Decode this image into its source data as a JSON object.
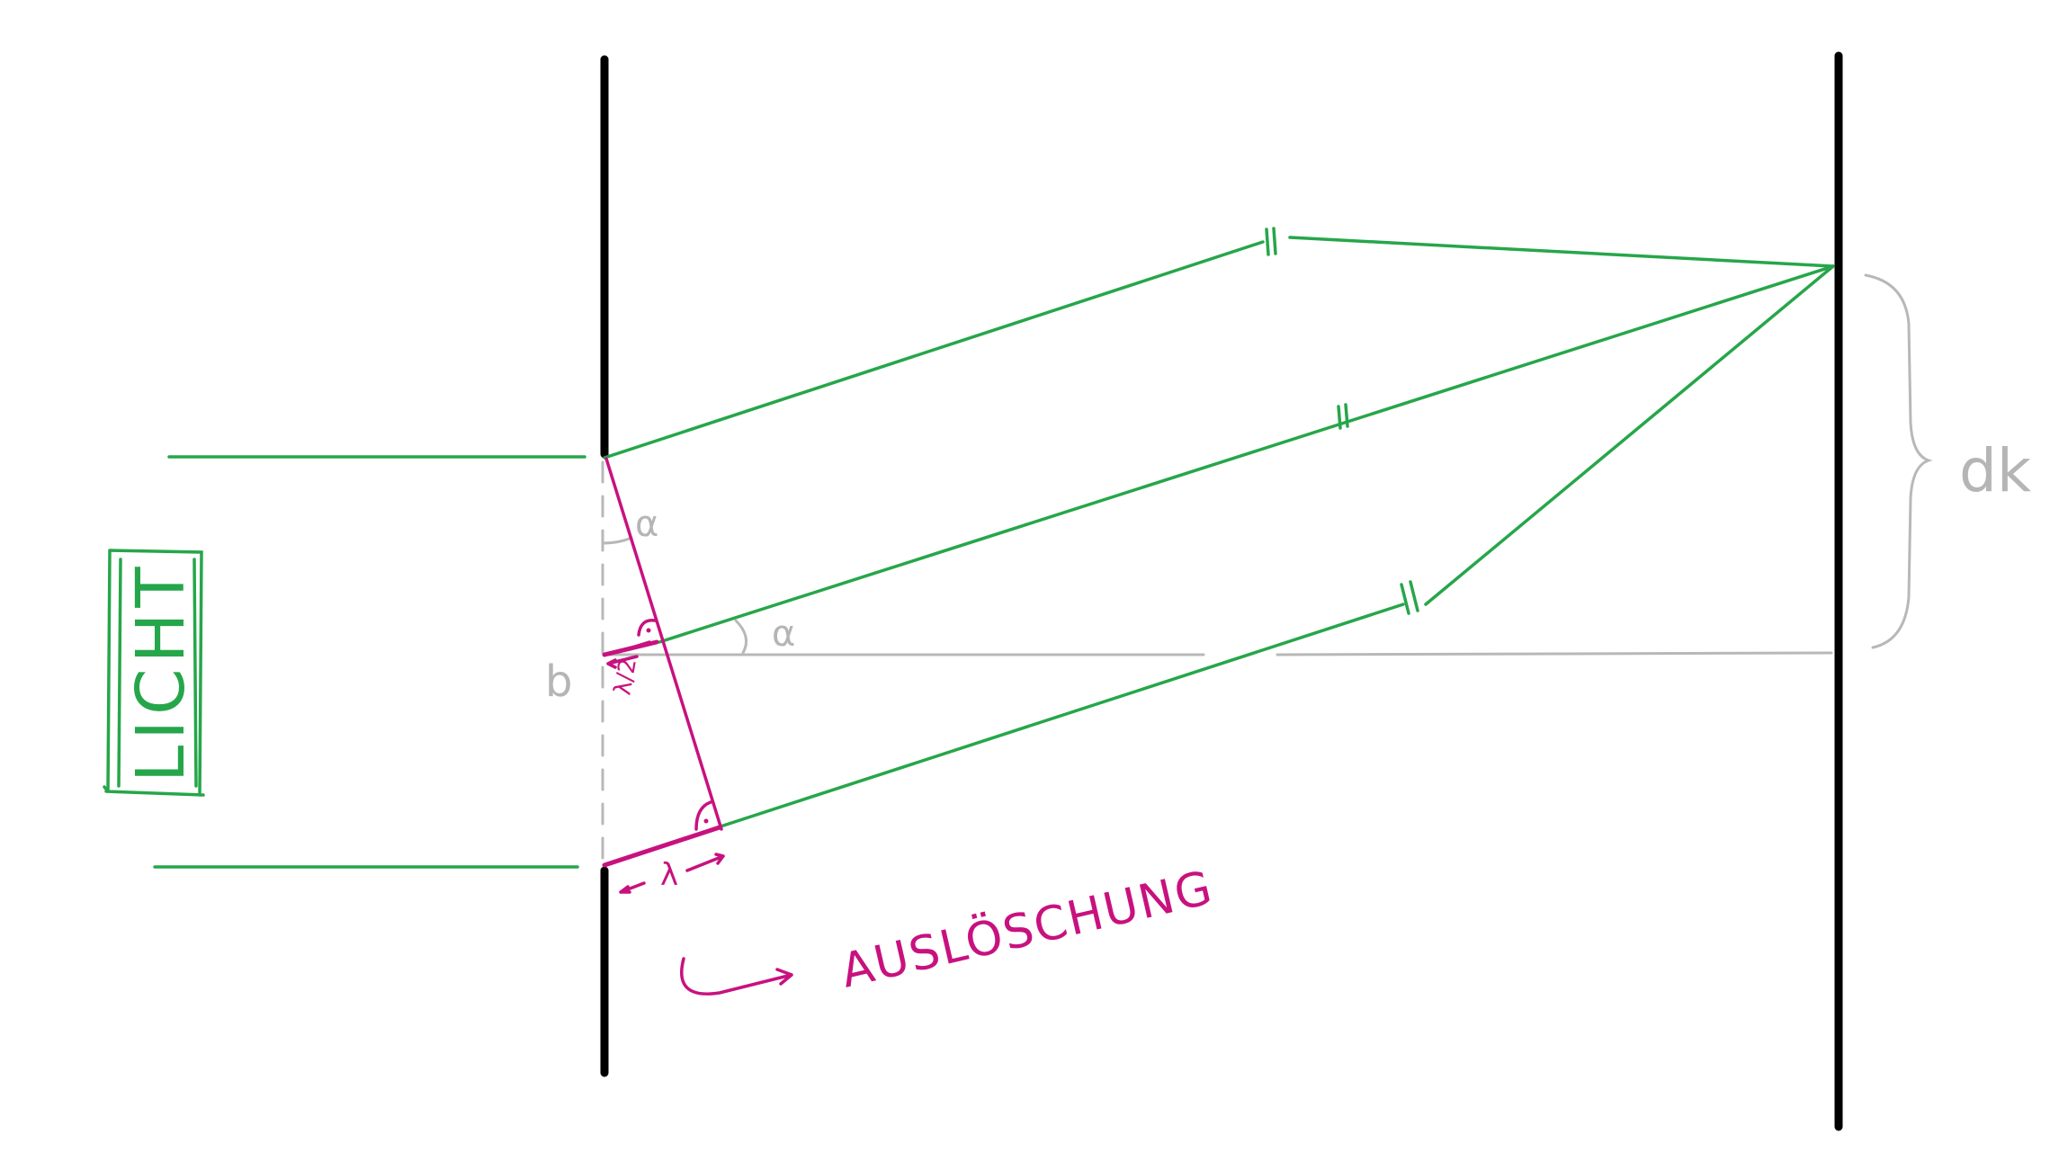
{
  "labels": {
    "light": "LICHT",
    "alpha": "α",
    "slit_width": "b",
    "half_wavelength": "λ/2",
    "wavelength": "λ",
    "distance": "dk",
    "cancellation": "AUSLÖSCHUNG"
  },
  "colors": {
    "wall": "#000000",
    "rays": "#26a64a",
    "construction": "#b8b8b8",
    "annotation": "#c8117f"
  }
}
